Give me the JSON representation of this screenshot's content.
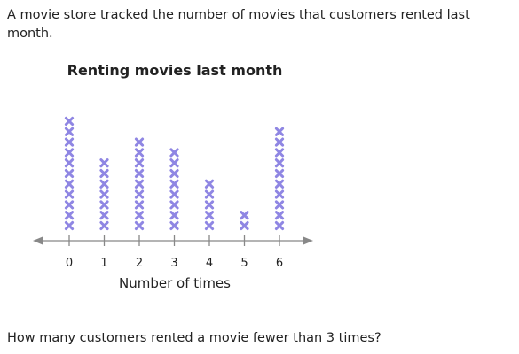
{
  "problem": {
    "intro": "A movie store tracked the number of movies that customers rented last month.",
    "question": "How many customers rented a movie fewer than 3 times?"
  },
  "chart_data": {
    "type": "dot_plot",
    "title": "Renting movies last month",
    "xlabel": "Number of times",
    "categories": [
      "0",
      "1",
      "2",
      "3",
      "4",
      "5",
      "6"
    ],
    "values": [
      11,
      7,
      9,
      8,
      5,
      2,
      10
    ],
    "marker": "x",
    "marker_color": "#8f86e3",
    "axis_color": "#888888"
  }
}
